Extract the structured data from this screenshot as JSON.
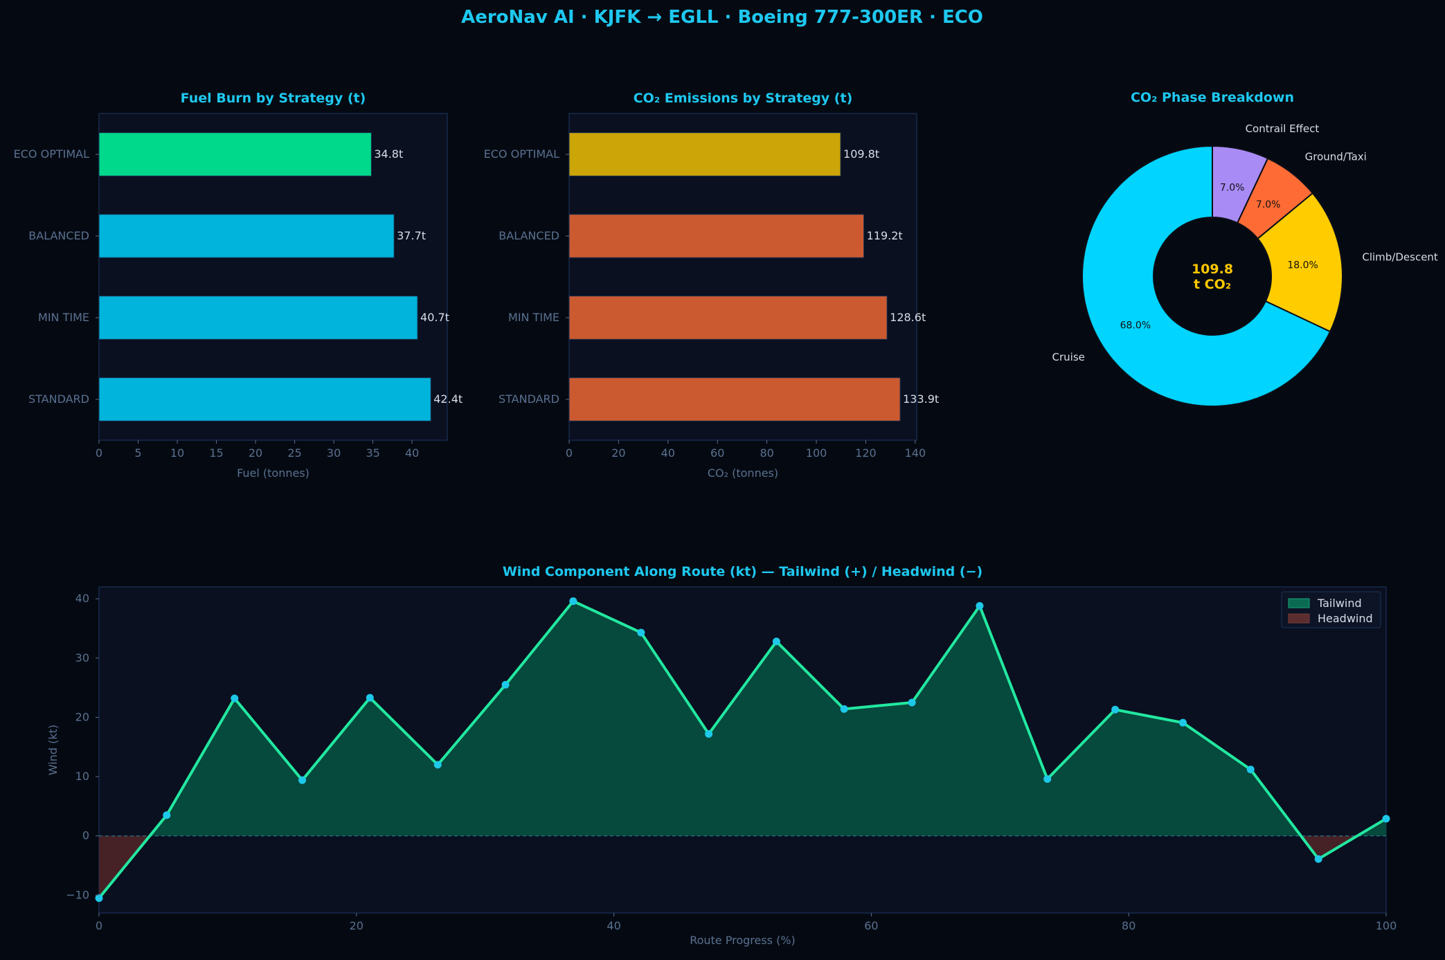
{
  "dashboard": {
    "title": "AeroNav AI  ·  KJFK → EGLL  ·  Boeing 777-300ER  ·  ECO"
  },
  "colors": {
    "background": "#050a12",
    "panel": "#0a1020",
    "panel_border": "#17294a",
    "accent": "#1ec8f0",
    "axis_text": "#5a7090",
    "label_text": "#d8dde6",
    "center_text": "#ffc800"
  },
  "chart_data": [
    {
      "type": "bar",
      "orientation": "horizontal",
      "title": "Fuel Burn by Strategy (t)",
      "xlabel": "Fuel (tonnes)",
      "ylabel": "",
      "categories": [
        "ECO OPTIMAL",
        "BALANCED",
        "MIN TIME",
        "STANDARD"
      ],
      "values": [
        34.8,
        37.7,
        40.7,
        42.4
      ],
      "value_labels": [
        "34.8t",
        "37.7t",
        "40.7t",
        "42.4t"
      ],
      "bar_colors": [
        "#00d98b",
        "#00b4dc",
        "#00b4dc",
        "#00b4dc"
      ],
      "xlim": [
        0,
        44.5
      ],
      "xticks": [
        0,
        5,
        10,
        15,
        20,
        25,
        30,
        35,
        40
      ],
      "grid": false
    },
    {
      "type": "bar",
      "orientation": "horizontal",
      "title": "CO₂ Emissions by Strategy (t)",
      "xlabel": "CO₂ (tonnes)",
      "ylabel": "",
      "categories": [
        "ECO OPTIMAL",
        "BALANCED",
        "MIN TIME",
        "STANDARD"
      ],
      "values": [
        109.8,
        119.2,
        128.6,
        133.9
      ],
      "value_labels": [
        "109.8t",
        "119.2t",
        "128.6t",
        "133.9t"
      ],
      "bar_colors": [
        "#cca508",
        "#cc5a30",
        "#cc5a30",
        "#cc5a30"
      ],
      "xlim": [
        0,
        140.6
      ],
      "xticks": [
        0,
        20,
        40,
        60,
        80,
        100,
        120,
        140
      ],
      "grid": false
    },
    {
      "type": "pie",
      "donut": true,
      "title": "CO₂ Phase Breakdown",
      "center_label": [
        "109.8",
        "t CO₂"
      ],
      "slices": [
        {
          "label": "Contrail Effect",
          "value": 7.0,
          "pct_label": "7.0%",
          "color": "#a98bf5"
        },
        {
          "label": "Ground/Taxi",
          "value": 7.0,
          "pct_label": "7.0%",
          "color": "#ff6b35"
        },
        {
          "label": "Climb/Descent",
          "value": 18.0,
          "pct_label": "18.0%",
          "color": "#ffcc00"
        },
        {
          "label": "Cruise",
          "value": 68.0,
          "pct_label": "68.0%",
          "color": "#00d4ff"
        }
      ]
    },
    {
      "type": "area",
      "title": "Wind Component Along Route (kt)  —  Tailwind (+) / Headwind (−)",
      "xlabel": "Route Progress (%)",
      "ylabel": "Wind (kt)",
      "x": [
        0,
        5.26,
        10.53,
        15.79,
        21.05,
        26.32,
        31.58,
        36.84,
        42.11,
        47.37,
        52.63,
        57.89,
        63.16,
        68.42,
        73.68,
        78.95,
        84.21,
        89.47,
        94.74,
        100
      ],
      "y": [
        -10.5,
        3.5,
        23.2,
        9.4,
        23.3,
        12.0,
        25.5,
        39.6,
        34.3,
        17.2,
        32.8,
        21.4,
        22.5,
        38.8,
        9.6,
        21.3,
        19.1,
        11.2,
        -3.9,
        2.9
      ],
      "xlim": [
        0,
        100
      ],
      "ylim": [
        -13,
        42
      ],
      "xticks": [
        0,
        20,
        40,
        60,
        80,
        100
      ],
      "yticks": [
        -10,
        0,
        10,
        20,
        30,
        40
      ],
      "ytick_labels": [
        "−10",
        "0",
        "10",
        "20",
        "30",
        "40"
      ],
      "legend": {
        "placement": "top-right",
        "entries": [
          {
            "label": "Tailwind",
            "color": "#0a6b52"
          },
          {
            "label": "Headwind",
            "color": "#5a2e2e"
          }
        ]
      },
      "line_color": "#22e8a0",
      "marker_color": "#1ec8e8",
      "tail_fill": "#064d3f",
      "head_fill": "#4a2428",
      "grid": false
    }
  ]
}
